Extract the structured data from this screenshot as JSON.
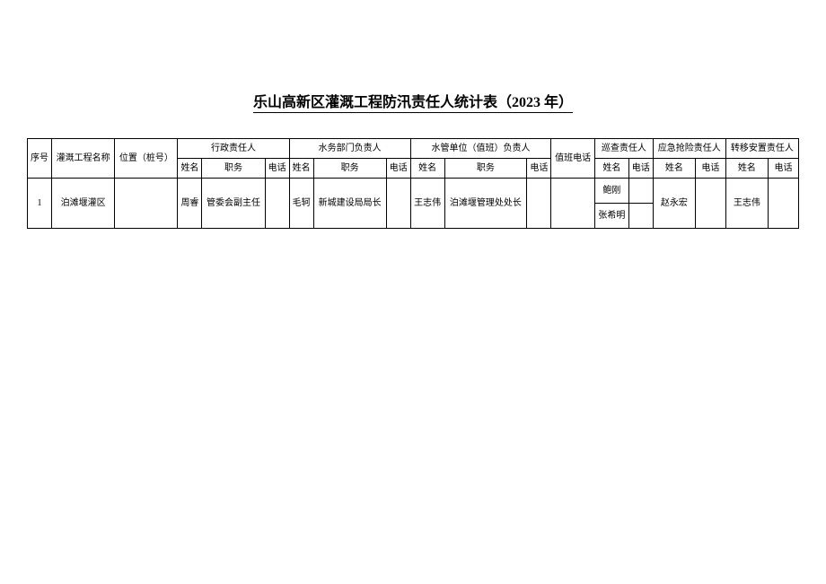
{
  "title": "乐山高新区灌溉工程防汛责任人统计表（2023 年）",
  "headers": {
    "seq": "序号",
    "project_name": "灌溉工程名称",
    "location": "位置（桩号）",
    "admin_responsible": "行政责任人",
    "water_dept_responsible": "水务部门负责人",
    "water_unit_responsible": "水管单位（值班）负责人",
    "duty_phone": "值班电话",
    "inspection_responsible": "巡查责任人",
    "emergency_responsible": "应急抢险责任人",
    "transfer_responsible": "转移安置责任人",
    "name": "姓名",
    "position": "职务",
    "phone": "电话"
  },
  "rows": [
    {
      "seq": "1",
      "project_name": "泊滩堰灌区",
      "location": "",
      "admin": {
        "name": "周睿",
        "position": "管委会副主任",
        "phone": ""
      },
      "water_dept": {
        "name": "毛轲",
        "position": "新城建设局局长",
        "phone": ""
      },
      "water_unit": {
        "name": "王志伟",
        "position": "泊滩堰管理处处长",
        "phone": ""
      },
      "duty_phone": "",
      "inspection": [
        {
          "name": "鲍刚",
          "phone": ""
        },
        {
          "name": "张希明",
          "phone": ""
        }
      ],
      "emergency": {
        "name": "赵永宏",
        "phone": ""
      },
      "transfer": {
        "name": "王志伟",
        "phone": ""
      }
    }
  ],
  "styling": {
    "background_color": "#ffffff",
    "border_color": "#000000",
    "title_fontsize": 16,
    "cell_fontsize": 10
  }
}
